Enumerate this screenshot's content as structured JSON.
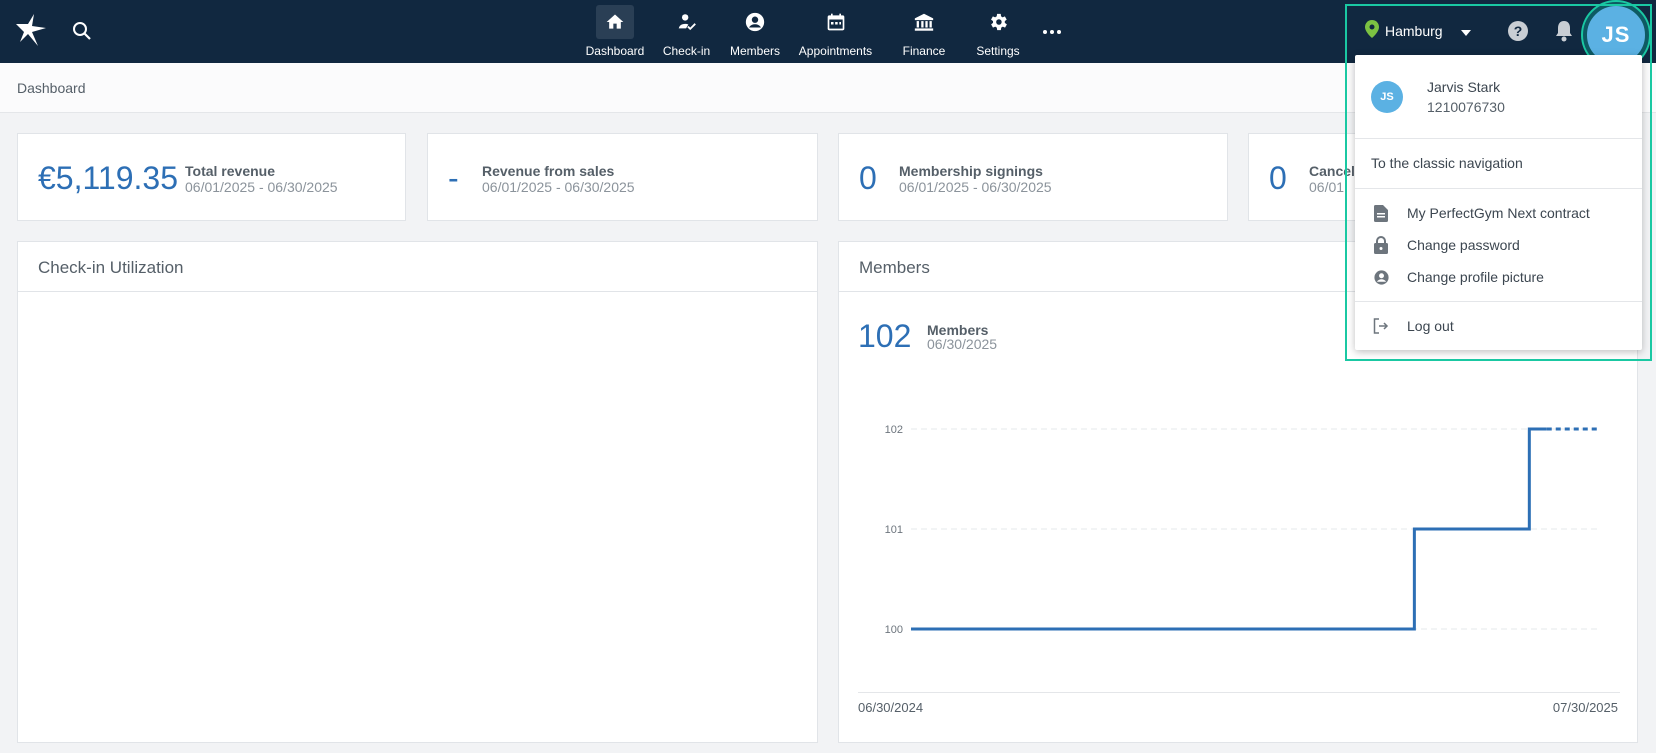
{
  "topbar": {
    "nav": [
      {
        "label": "Dashboard",
        "icon": "home-icon",
        "active": true
      },
      {
        "label": "Check-in",
        "icon": "check-in-icon"
      },
      {
        "label": "Members",
        "icon": "account-circle-icon"
      },
      {
        "label": "Appointments",
        "icon": "calendar-icon"
      },
      {
        "label": "Finance",
        "icon": "bank-icon"
      },
      {
        "label": "Settings",
        "icon": "gear-icon"
      }
    ],
    "location": "Hamburg",
    "avatar_initials": "JS"
  },
  "breadcrumb": "Dashboard",
  "stats": [
    {
      "value": "€5,119.35",
      "title": "Total revenue",
      "period": "06/01/2025 - 06/30/2025"
    },
    {
      "value": "-",
      "title": "Revenue from sales",
      "period": "06/01/2025 - 06/30/2025"
    },
    {
      "value": "0",
      "title": "Membership signings",
      "period": "06/01/2025 - 06/30/2025"
    },
    {
      "value": "0",
      "title": "Cancel",
      "period": "06/01"
    }
  ],
  "panels": {
    "checkin": {
      "title": "Check-in Utilization"
    },
    "members": {
      "title": "Members",
      "count": "102",
      "label": "Members",
      "date": "06/30/2025",
      "start_date": "06/30/2024",
      "end_date": "07/30/2025"
    }
  },
  "chart_data": {
    "type": "line",
    "title": "",
    "xlabel": "",
    "ylabel": "",
    "x_range": [
      "06/30/2024",
      "07/30/2025"
    ],
    "ylim": [
      100,
      102
    ],
    "yticks": [
      "102",
      "101",
      "100"
    ],
    "series": [
      {
        "points": [
          {
            "x": "06/30/2024",
            "y": 100
          },
          {
            "x": "04/15/2025",
            "y": 100
          },
          {
            "x": "04/15/2025",
            "y": 101
          },
          {
            "x": "06/20/2025",
            "y": 101
          },
          {
            "x": "06/20/2025",
            "y": 102
          },
          {
            "x": "07/30/2025",
            "y": 102
          }
        ],
        "projected_from": "06/30/2025",
        "color": "#2d6fb5"
      }
    ],
    "grid": true
  },
  "dropdown": {
    "user_initials": "JS",
    "user_name": "Jarvis Stark",
    "user_id": "1210076730",
    "classic_nav": "To the classic navigation",
    "items": [
      {
        "label": "My PerfectGym Next contract",
        "icon": "document-icon"
      },
      {
        "label": "Change password",
        "icon": "lock-icon"
      },
      {
        "label": "Change profile picture",
        "icon": "account-circle-icon"
      }
    ],
    "logout": "Log out"
  },
  "colors": {
    "topbar": "#112840",
    "accent": "#2d6fb5",
    "highlight": "#1ac8a3",
    "avatar": "#5bb1e3",
    "pin": "#7cc242"
  }
}
